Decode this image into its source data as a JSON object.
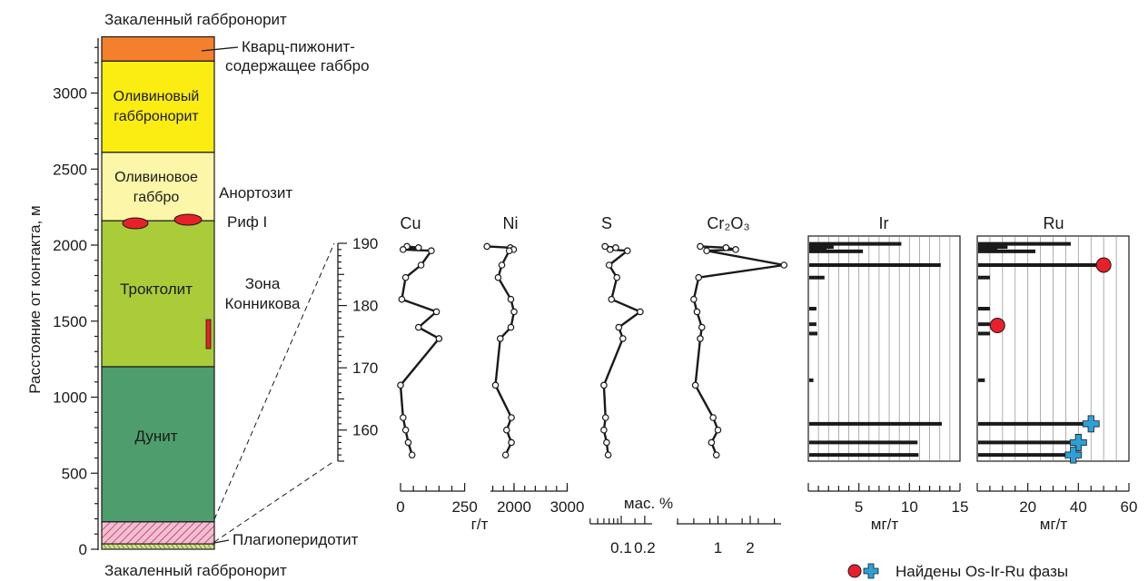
{
  "column": {
    "top_label": "Закаленный габбронорит",
    "bottom_label": "Закаленный габбронорит",
    "y_axis_label": "Расстояние от контакта, м",
    "y_ticks": [
      "0",
      "500",
      "1000",
      "1500",
      "2000",
      "2500",
      "3000"
    ],
    "layers": [
      {
        "name": "Кварц-пижонит-содержащее габбро",
        "from_m": 3210,
        "to_m": 3370,
        "color": "#f47f2c"
      },
      {
        "name": "Оливиновый габбронорит",
        "from_m": 2610,
        "to_m": 3210,
        "color": "#fbec12"
      },
      {
        "name": "Оливиновое габбро",
        "from_m": 2160,
        "to_m": 2610,
        "color": "#fcf6a8"
      },
      {
        "name": "Троктолит",
        "from_m": 1200,
        "to_m": 2160,
        "color": "#a9cc38"
      },
      {
        "name": "Дунит",
        "from_m": 180,
        "to_m": 1200,
        "color": "#4e9e6d"
      },
      {
        "name": "Плагиоперидотит",
        "from_m": 35,
        "to_m": 180,
        "color": "#f1bfd0"
      },
      {
        "name": "Закаленный габбронорит",
        "from_m": 0,
        "to_m": 35,
        "color": "#d4e08c"
      }
    ],
    "layer_labels": {
      "olivine_gabbronorite_1": "Оливиновый",
      "olivine_gabbronorite_2": "габбронорит",
      "olivine_gabbro_1": "Оливиновое",
      "olivine_gabbro_2": "габбро",
      "troctolite": "Троктолит",
      "dunite": "Дунит"
    },
    "callouts": {
      "qp_gabbro_1": "Кварц-пижонит-",
      "qp_gabbro_2": "содержащее габбро",
      "anorthosite": "Анортозит",
      "reef": "Риф I",
      "konnikov_1": "Зона",
      "konnikov_2": "Конникова",
      "plagioperidotite": "Плагиоперидотит"
    },
    "colors": {
      "reef_lens": "#e8202a",
      "hatch": "#c0306a"
    }
  },
  "detail_axis": {
    "ticks": [
      "160",
      "170",
      "180",
      "190"
    ]
  },
  "chart_data": [
    {
      "type": "line",
      "title": "Cu",
      "xlabel": "г/т",
      "x_ticks": [
        "0",
        "250"
      ],
      "depth_m": [
        189.5,
        189.3,
        189.0,
        188.8,
        186.5,
        184.5,
        181.0,
        179.0,
        176.5,
        174.7,
        167.2,
        162.0,
        160.0,
        158.0,
        156.0
      ],
      "values": [
        25,
        70,
        10,
        120,
        80,
        20,
        5,
        140,
        70,
        150,
        0,
        10,
        20,
        30,
        45
      ]
    },
    {
      "type": "line",
      "title": "Ni",
      "xlabel": "",
      "x_ticks": [
        "2000",
        "3000"
      ],
      "depth_m": [
        189.5,
        189.3,
        189.0,
        188.8,
        186.5,
        184.5,
        181.0,
        179.0,
        176.5,
        174.7,
        167.2,
        162.0,
        160.0,
        158.0,
        156.0
      ],
      "values": [
        1490,
        1930,
        1990,
        1910,
        1770,
        1700,
        1940,
        2000,
        1940,
        1740,
        1650,
        1950,
        1860,
        1950,
        1840
      ]
    },
    {
      "type": "line",
      "title": "S",
      "xlabel": "мас. %",
      "x_ticks": [
        "0.1",
        "0.2"
      ],
      "depth_m": [
        189.5,
        189.3,
        189.0,
        188.8,
        186.5,
        184.5,
        181.0,
        179.0,
        176.5,
        174.7,
        167.2,
        162.0,
        160.0,
        158.0,
        156.0
      ],
      "values": [
        0.062,
        0.085,
        0.072,
        0.12,
        0.07,
        0.088,
        0.075,
        0.175,
        0.093,
        0.105,
        0.06,
        0.063,
        0.06,
        0.065,
        0.068
      ]
    },
    {
      "type": "line",
      "title": "Cr₂O₃",
      "xlabel": "",
      "x_ticks": [
        "1",
        "2"
      ],
      "depth_m": [
        189.5,
        189.3,
        189.0,
        188.8,
        186.5,
        184.5,
        181.0,
        179.0,
        176.5,
        174.7,
        167.2,
        162.0,
        160.0,
        158.0,
        156.0
      ],
      "values": [
        0.45,
        1.25,
        1.55,
        0.65,
        3.05,
        0.4,
        0.25,
        0.35,
        0.5,
        0.45,
        0.3,
        0.85,
        1.0,
        0.8,
        0.95
      ]
    },
    {
      "type": "bar",
      "title": "Ir",
      "xlabel": "мг/т",
      "x_ticks": [
        "5",
        "10",
        "15"
      ],
      "xlim": [
        0,
        15
      ],
      "depth_m": [
        189.9,
        189.4,
        189.0,
        188.7,
        186.5,
        184.5,
        179.5,
        177.0,
        175.5,
        168.0,
        161.0,
        158.0,
        156.0
      ],
      "values": [
        9.2,
        2.5,
        1.8,
        5.4,
        13.1,
        1.6,
        0.8,
        0.8,
        0.9,
        0.5,
        13.2,
        10.8,
        10.9
      ],
      "markers": []
    },
    {
      "type": "bar",
      "title": "Ru",
      "xlabel": "мг/т",
      "x_ticks": [
        "20",
        "40",
        "60"
      ],
      "xlim": [
        0,
        60
      ],
      "depth_m": [
        189.9,
        189.4,
        189.0,
        188.7,
        186.5,
        184.5,
        179.5,
        177.0,
        175.5,
        168.0,
        161.0,
        158.0,
        156.0
      ],
      "values": [
        37,
        12,
        8,
        23,
        50,
        5,
        5,
        5,
        5,
        3,
        45,
        40,
        38
      ],
      "markers": [
        {
          "type": "circle",
          "depth_m": 186.5,
          "value": 50
        },
        {
          "type": "circle",
          "depth_m": 176.8,
          "value": 8
        },
        {
          "type": "cross",
          "depth_m": 161.0,
          "value": 45
        },
        {
          "type": "cross",
          "depth_m": 158.0,
          "value": 40
        },
        {
          "type": "cross",
          "depth_m": 156.0,
          "value": 38
        }
      ]
    }
  ],
  "legend": {
    "text": "Найдены Os-Ir-Ru фазы",
    "circle_color": "#e8202a",
    "cross_color": "#2f9fd8"
  }
}
